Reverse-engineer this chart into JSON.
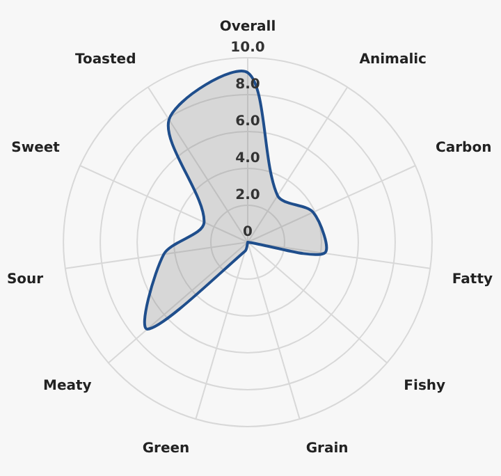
{
  "chart_data": {
    "type": "radar",
    "categories": [
      "Overall",
      "Animalic",
      "Carbon",
      "Fatty",
      "Fishy",
      "Grain",
      "Green",
      "Meaty",
      "Sour",
      "Sweet",
      "Toasted"
    ],
    "series": [
      {
        "color": "#1f4e8c",
        "values": [
          9.2,
          3.0,
          3.9,
          4.2,
          0,
          0,
          0.5,
          7.2,
          4.6,
          2.6,
          7.9
        ]
      }
    ],
    "ylim": [
      0,
      10
    ],
    "yticks": [
      0,
      {
        "value": 2,
        "label": "2.0"
      },
      {
        "value": 4,
        "label": "4.0"
      },
      {
        "value": 6,
        "label": "6.0"
      },
      {
        "value": 8,
        "label": "8.0"
      },
      {
        "value": 10,
        "label": "10.0"
      }
    ],
    "grid": true,
    "legend": false
  }
}
